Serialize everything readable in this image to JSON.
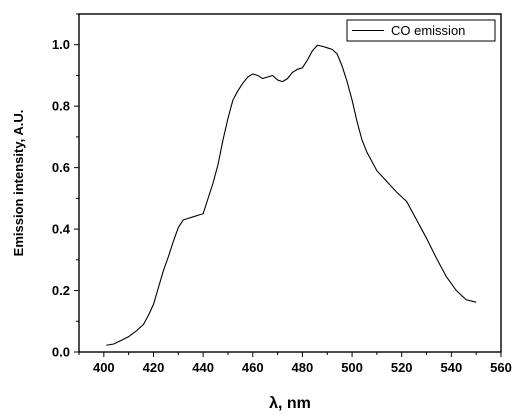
{
  "chart_data": {
    "type": "line",
    "xlabel": "λ, nm",
    "ylabel": "Emission intensity, A.U.",
    "xlim": [
      390,
      560
    ],
    "ylim": [
      0,
      1.1
    ],
    "x_ticks": [
      "400",
      "420",
      "440",
      "460",
      "480",
      "500",
      "520",
      "540",
      "560"
    ],
    "y_ticks": [
      "0.0",
      "0.2",
      "0.4",
      "0.6",
      "0.8",
      "1.0"
    ],
    "grid": false,
    "legend_position": "top-right",
    "series": [
      {
        "name": "CO emission",
        "color": "#000000",
        "x": [
          401,
          404,
          407,
          410,
          413,
          416,
          418,
          420,
          422,
          424,
          426,
          428,
          430,
          432,
          434,
          436,
          438,
          440,
          442,
          444,
          446,
          448,
          450,
          452,
          454,
          456,
          458,
          460,
          462,
          464,
          466,
          468,
          470,
          472,
          474,
          476,
          478,
          480,
          482,
          484,
          486,
          488,
          490,
          492,
          494,
          496,
          498,
          500,
          502,
          504,
          506,
          508,
          510,
          514,
          518,
          522,
          526,
          530,
          534,
          538,
          542,
          546,
          550
        ],
        "y": [
          0.022,
          0.026,
          0.038,
          0.05,
          0.068,
          0.09,
          0.12,
          0.155,
          0.21,
          0.265,
          0.31,
          0.36,
          0.405,
          0.43,
          0.435,
          0.44,
          0.445,
          0.45,
          0.5,
          0.55,
          0.61,
          0.69,
          0.76,
          0.82,
          0.85,
          0.875,
          0.895,
          0.905,
          0.9,
          0.89,
          0.895,
          0.9,
          0.885,
          0.88,
          0.89,
          0.91,
          0.92,
          0.925,
          0.95,
          0.98,
          0.998,
          0.995,
          0.99,
          0.985,
          0.97,
          0.93,
          0.88,
          0.82,
          0.75,
          0.69,
          0.65,
          0.62,
          0.59,
          0.555,
          0.52,
          0.49,
          0.43,
          0.37,
          0.305,
          0.245,
          0.2,
          0.17,
          0.162
        ]
      }
    ]
  }
}
